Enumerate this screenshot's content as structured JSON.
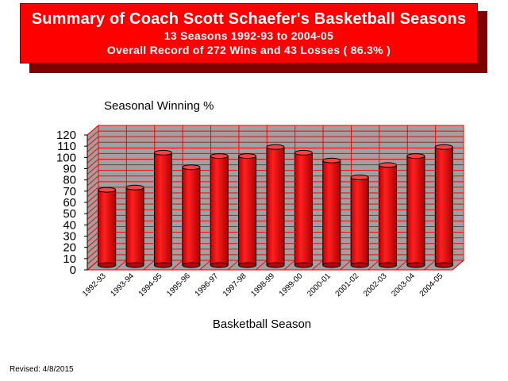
{
  "banner": {
    "title": "Summary of Coach Scott Schaefer's Basketball Seasons",
    "subtitle_1": "13 Seasons   1992-93 to 2004-05",
    "subtitle_2": "Overall Record of 272 Wins and 43 Losses ( 86.3% )"
  },
  "footer": {
    "revised": "Revised: 4/8/2015"
  },
  "chart_data": {
    "type": "bar",
    "title": "Seasonal Winning %",
    "xlabel": "Basketball Season",
    "ylabel": "",
    "ylim": [
      0,
      120
    ],
    "yticks": [
      0,
      5,
      10,
      15,
      20,
      25,
      30,
      35,
      40,
      45,
      50,
      55,
      60,
      65,
      70,
      75,
      80,
      85,
      90,
      95,
      100,
      105,
      110,
      115,
      120
    ],
    "grid": true,
    "legend": "none",
    "categories": [
      "1992-93",
      "1993-94",
      "1994-95",
      "1995-96",
      "1996-97",
      "1997-98",
      "1998-99",
      "1999-00",
      "2000-01",
      "2001-02",
      "2002-03",
      "2003-04",
      "2004-05"
    ],
    "values": [
      67,
      69,
      100,
      87,
      97,
      97,
      105,
      100,
      93,
      78,
      89,
      97,
      105
    ],
    "bar_color": "#ff0000",
    "back_wall_color": "#a0a0a0",
    "grid_color": "#ff0000"
  }
}
